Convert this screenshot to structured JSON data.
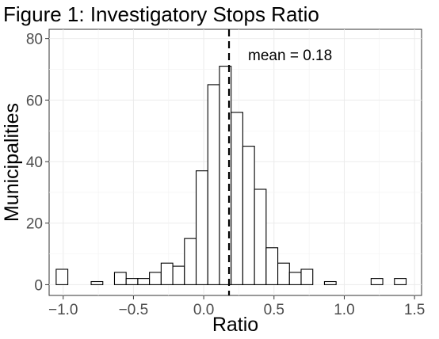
{
  "chart_data": {
    "type": "bar",
    "title": "Figure 1: Investigatory Stops Ratio",
    "xlabel": "Ratio",
    "ylabel": "Municipalities",
    "xlim": [
      -1.1,
      1.55
    ],
    "ylim": [
      -3.5,
      83
    ],
    "x_ticks": [
      -1.0,
      -0.5,
      0.0,
      0.5,
      1.0,
      1.5
    ],
    "x_tick_labels": [
      "−1.0",
      "−0.5",
      "0.0",
      "0.5",
      "1.0",
      "1.5"
    ],
    "y_ticks": [
      0,
      20,
      40,
      60,
      80
    ],
    "y_tick_labels": [
      "0",
      "20",
      "40",
      "60",
      "80"
    ],
    "grid": true,
    "bin_width": 0.083,
    "bins": [
      {
        "x0": -1.05,
        "count": 5
      },
      {
        "x0": -0.967,
        "count": 0
      },
      {
        "x0": -0.884,
        "count": 0
      },
      {
        "x0": -0.801,
        "count": 1
      },
      {
        "x0": -0.718,
        "count": 0
      },
      {
        "x0": -0.635,
        "count": 4
      },
      {
        "x0": -0.552,
        "count": 2
      },
      {
        "x0": -0.469,
        "count": 2
      },
      {
        "x0": -0.386,
        "count": 4
      },
      {
        "x0": -0.303,
        "count": 7
      },
      {
        "x0": -0.22,
        "count": 6
      },
      {
        "x0": -0.137,
        "count": 15
      },
      {
        "x0": -0.054,
        "count": 37
      },
      {
        "x0": 0.029,
        "count": 65
      },
      {
        "x0": 0.112,
        "count": 71
      },
      {
        "x0": 0.195,
        "count": 56
      },
      {
        "x0": 0.278,
        "count": 45
      },
      {
        "x0": 0.361,
        "count": 31
      },
      {
        "x0": 0.444,
        "count": 12
      },
      {
        "x0": 0.527,
        "count": 7
      },
      {
        "x0": 0.61,
        "count": 4
      },
      {
        "x0": 0.693,
        "count": 5
      },
      {
        "x0": 0.776,
        "count": 0
      },
      {
        "x0": 0.859,
        "count": 1
      },
      {
        "x0": 0.942,
        "count": 0
      },
      {
        "x0": 1.025,
        "count": 0
      },
      {
        "x0": 1.108,
        "count": 0
      },
      {
        "x0": 1.191,
        "count": 2
      },
      {
        "x0": 1.274,
        "count": 0
      },
      {
        "x0": 1.357,
        "count": 2
      }
    ],
    "mean": 0.18,
    "mean_label": "mean = 0.18",
    "colors": {
      "bar_fill": "#ffffff",
      "bar_stroke": "#000000",
      "grid": "#ebebeb",
      "mean_line": "#000000"
    }
  }
}
